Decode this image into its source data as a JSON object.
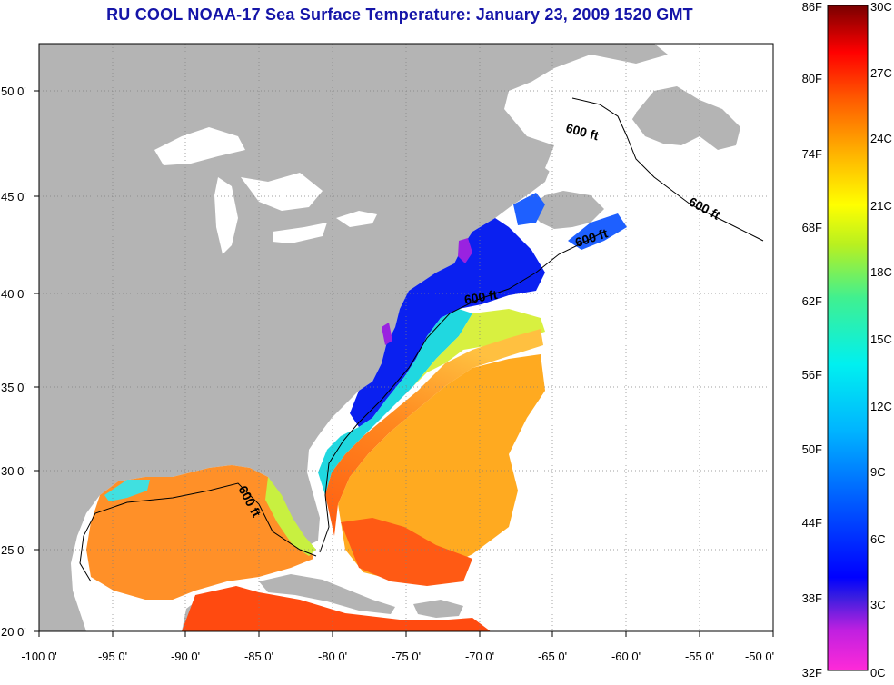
{
  "title": "RU COOL  NOAA-17  Sea Surface Temperature:  January 23, 2009 1520 GMT",
  "map": {
    "lon_ticks": [
      "-100 0'",
      "-95 0'",
      "-90 0'",
      "-85 0'",
      "-80 0'",
      "-75 0'",
      "-70 0'",
      "-65 0'",
      "-60 0'",
      "-55 0'",
      "-50 0'"
    ],
    "lat_ticks": [
      "20 0'",
      "25 0'",
      "30 0'",
      "35 0'",
      "40 0'",
      "45 0'",
      "50 0'"
    ],
    "contour_label": "600 ft",
    "colors": {
      "land": "#b4b4b4",
      "water_nodata": "#ffffff"
    }
  },
  "colorbar": {
    "f_labels": [
      "86F",
      "80F",
      "74F",
      "68F",
      "62F",
      "56F",
      "50F",
      "44F",
      "38F",
      "32F"
    ],
    "c_labels": [
      "30C",
      "27C",
      "24C",
      "21C",
      "18C",
      "15C",
      "12C",
      "9C",
      "6C",
      "3C",
      "0C"
    ]
  }
}
